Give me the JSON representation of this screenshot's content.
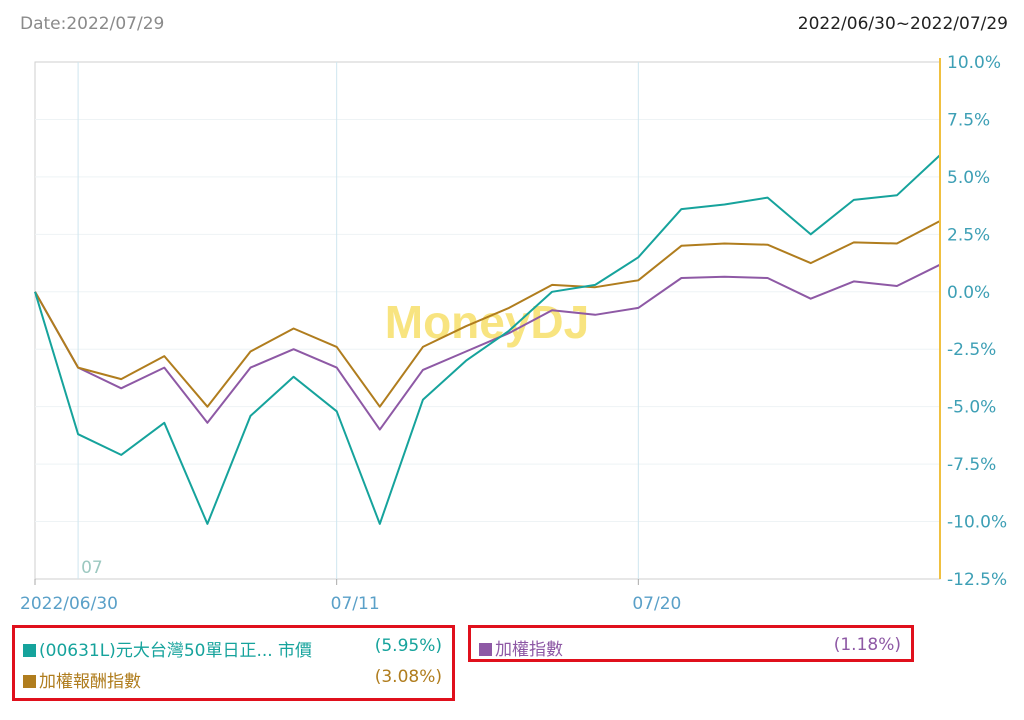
{
  "header": {
    "date_label": "Date:2022/07/29",
    "range_label": "2022/06/30~2022/07/29"
  },
  "watermark": "MoneyDJ",
  "colors": {
    "series_0": "#16a39c",
    "series_1": "#b07d1e",
    "series_2": "#8e59a5",
    "axis_right": "#f0c040",
    "tick_text": "#3d9fb5",
    "x_tick_text": "#5aa0c8",
    "grid": "#cfe6ef",
    "legend_border": "#e0101c",
    "watermark": "#f7e06a"
  },
  "legend_left": [
    {
      "label": "(00631L)元大台灣50單日正... 市價",
      "value": "(5.95%)"
    },
    {
      "label": "加權報酬指數",
      "value": "(3.08%)"
    }
  ],
  "legend_right": [
    {
      "label": "加權指數",
      "value": "(1.18%)"
    }
  ],
  "chart_data": {
    "type": "line",
    "x": [
      "2022/06/30",
      "07/01",
      "07/04",
      "07/05",
      "07/06",
      "07/07",
      "07/08",
      "07/11",
      "07/12",
      "07/13",
      "07/14",
      "07/15",
      "07/18",
      "07/19",
      "07/20",
      "07/21",
      "07/22",
      "07/25",
      "07/26",
      "07/27",
      "07/28",
      "07/29"
    ],
    "x_tick_labels": [
      {
        "label": "2022/06/30",
        "index": 0
      },
      {
        "label": "07/11",
        "index": 7
      },
      {
        "label": "07/20",
        "index": 14
      }
    ],
    "month_marker": {
      "label": "07",
      "index": 1
    },
    "y_ticks": [
      "10.0%",
      "7.5%",
      "5.0%",
      "2.5%",
      "0.0%",
      "-2.5%",
      "-5.0%",
      "-7.5%",
      "-10.0%",
      "-12.5%"
    ],
    "ylim": [
      -12.5,
      10.0
    ],
    "y_axis_position": "right",
    "grid": true,
    "legend_position": "bottom",
    "series": [
      {
        "name": "(00631L)元大台灣50單日正... 市價",
        "values": [
          0.0,
          -6.2,
          -7.1,
          -5.7,
          -10.1,
          -5.4,
          -3.7,
          -5.2,
          -10.1,
          -4.7,
          -3.0,
          -1.7,
          0.0,
          0.3,
          1.5,
          3.6,
          3.8,
          4.1,
          2.5,
          4.0,
          4.2,
          5.95
        ]
      },
      {
        "name": "加權報酬指數",
        "values": [
          0.0,
          -3.3,
          -3.8,
          -2.8,
          -5.0,
          -2.6,
          -1.6,
          -2.4,
          -5.0,
          -2.4,
          -1.5,
          -0.7,
          0.3,
          0.2,
          0.5,
          2.0,
          2.1,
          2.05,
          1.25,
          2.15,
          2.1,
          3.08
        ]
      },
      {
        "name": "加權指數",
        "values": [
          0.0,
          -3.3,
          -4.2,
          -3.3,
          -5.7,
          -3.3,
          -2.5,
          -3.3,
          -6.0,
          -3.4,
          -2.6,
          -1.8,
          -0.8,
          -1.0,
          -0.7,
          0.6,
          0.65,
          0.6,
          -0.3,
          0.45,
          0.25,
          1.18
        ]
      }
    ]
  }
}
